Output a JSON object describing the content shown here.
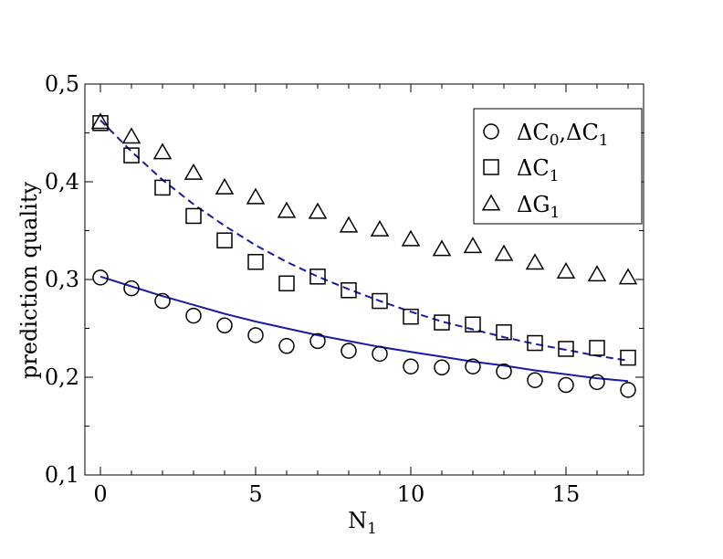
{
  "chart_data": {
    "type": "scatter",
    "xlabel": "N",
    "xlabel_sub": "1",
    "ylabel": "prediction quality",
    "xlim": [
      -0.5,
      17.5
    ],
    "ylim": [
      0.1,
      0.5
    ],
    "xticks": [
      0,
      5,
      10,
      15
    ],
    "xtick_labels": [
      "0",
      "5",
      "10",
      "15"
    ],
    "yticks": [
      0.1,
      0.2,
      0.3,
      0.4,
      0.5
    ],
    "ytick_labels": [
      "0,1",
      "0,2",
      "0,3",
      "0,4",
      "0,5"
    ],
    "grid": false,
    "legend_position": "top-right",
    "series": [
      {
        "name": "ΔC0,ΔC1",
        "legend_parts": [
          {
            "t": "ΔC"
          },
          {
            "t": "0",
            "sub": true
          },
          {
            "t": ",ΔC"
          },
          {
            "t": "1",
            "sub": true
          }
        ],
        "marker": "circle",
        "x": [
          0,
          1,
          2,
          3,
          4,
          5,
          6,
          7,
          8,
          9,
          10,
          11,
          12,
          13,
          14,
          15,
          16,
          17
        ],
        "y": [
          0.302,
          0.291,
          0.278,
          0.263,
          0.253,
          0.243,
          0.232,
          0.237,
          0.227,
          0.224,
          0.211,
          0.21,
          0.211,
          0.206,
          0.197,
          0.192,
          0.195,
          0.187
        ]
      },
      {
        "name": "ΔC1",
        "legend_parts": [
          {
            "t": "ΔC"
          },
          {
            "t": "1",
            "sub": true
          }
        ],
        "marker": "square",
        "x": [
          0,
          1,
          2,
          3,
          4,
          5,
          6,
          7,
          8,
          9,
          10,
          11,
          12,
          13,
          14,
          15,
          16,
          17
        ],
        "y": [
          0.46,
          0.427,
          0.394,
          0.365,
          0.34,
          0.318,
          0.296,
          0.303,
          0.289,
          0.278,
          0.262,
          0.256,
          0.254,
          0.246,
          0.235,
          0.229,
          0.23,
          0.22
        ]
      },
      {
        "name": "ΔG1",
        "legend_parts": [
          {
            "t": "ΔG"
          },
          {
            "t": "1",
            "sub": true
          }
        ],
        "marker": "triangle",
        "x": [
          0,
          1,
          2,
          3,
          4,
          5,
          6,
          7,
          8,
          9,
          10,
          11,
          12,
          13,
          14,
          15,
          16,
          17
        ],
        "y": [
          0.461,
          0.446,
          0.43,
          0.409,
          0.394,
          0.384,
          0.37,
          0.369,
          0.355,
          0.351,
          0.341,
          0.331,
          0.334,
          0.326,
          0.317,
          0.308,
          0.305,
          0.302
        ]
      }
    ],
    "fit_lines": [
      {
        "style": "solid",
        "color": "#1a1aa6",
        "x": [
          0,
          1,
          2,
          3,
          4,
          5,
          6,
          7,
          8,
          9,
          10,
          11,
          12,
          13,
          14,
          15,
          16,
          17
        ],
        "y": [
          0.303,
          0.293,
          0.283,
          0.274,
          0.265,
          0.257,
          0.25,
          0.243,
          0.237,
          0.231,
          0.226,
          0.221,
          0.216,
          0.212,
          0.207,
          0.203,
          0.199,
          0.196
        ]
      },
      {
        "style": "dashed",
        "color": "#1a1aa6",
        "x": [
          0,
          1,
          2,
          3,
          4,
          5,
          6,
          7,
          8,
          9,
          10,
          11,
          12,
          13,
          14,
          15,
          16,
          17
        ],
        "y": [
          0.463,
          0.431,
          0.402,
          0.377,
          0.355,
          0.335,
          0.318,
          0.303,
          0.29,
          0.278,
          0.267,
          0.257,
          0.249,
          0.241,
          0.234,
          0.228,
          0.222,
          0.217
        ]
      }
    ]
  }
}
